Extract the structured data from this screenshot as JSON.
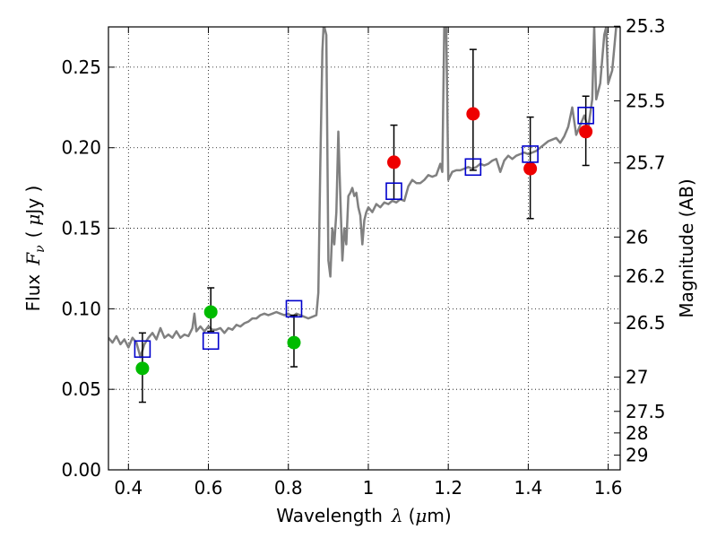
{
  "chart_data": {
    "type": "scatter",
    "title": "",
    "xlabel": "Wavelength",
    "xlabel_symbol": "λ",
    "xlabel_unit_prefix": "(",
    "xlabel_unit_mu": "μ",
    "xlabel_unit_rest": "m)",
    "ylabel": "Flux",
    "ylabel_symbol": "F",
    "ylabel_subscript": "ν",
    "ylabel_unit_prefix": "(",
    "ylabel_unit_mu": "μ",
    "ylabel_unit_rest": "Jy )",
    "y2label": "Magnitude (AB)",
    "xlim": [
      0.35,
      1.63
    ],
    "ylim": [
      0.0,
      0.275
    ],
    "grid": true,
    "xticks": [
      0.4,
      0.6,
      0.8,
      1.0,
      1.2,
      1.4,
      1.6
    ],
    "xtick_labels": [
      "0.4",
      "0.6",
      "0.8",
      "1",
      "1.2",
      "1.4",
      "1.6"
    ],
    "yticks": [
      0.0,
      0.05,
      0.1,
      0.15,
      0.2,
      0.25
    ],
    "ytick_labels": [
      "0.00",
      "0.05",
      "0.10",
      "0.15",
      "0.20",
      "0.25"
    ],
    "y2ticks": [
      {
        "label": "25.3",
        "mag": 25.3
      },
      {
        "label": "25.5",
        "mag": 25.5
      },
      {
        "label": "25.7",
        "mag": 25.7
      },
      {
        "label": "26",
        "mag": 26.0
      },
      {
        "label": "26.2",
        "mag": 26.2
      },
      {
        "label": "26.5",
        "mag": 26.5
      },
      {
        "label": "27",
        "mag": 27.0
      },
      {
        "label": "27.5",
        "mag": 27.5
      },
      {
        "label": "28",
        "mag": 28.0
      },
      {
        "label": "29",
        "mag": 29.0
      }
    ],
    "colors": {
      "green": "#00bb00",
      "red": "#ee0000",
      "model_points": "#0000cc",
      "template": "#808080",
      "errorbar": "#000000",
      "grid": "#000000"
    },
    "series": [
      {
        "name": "observed-green",
        "marker": "circle",
        "color": "#00bb00",
        "points": [
          {
            "x": 0.435,
            "y": 0.063,
            "lo": 0.042,
            "hi": 0.085
          },
          {
            "x": 0.606,
            "y": 0.098,
            "lo": 0.086,
            "hi": 0.113
          },
          {
            "x": 0.814,
            "y": 0.079,
            "lo": 0.064,
            "hi": 0.096
          }
        ]
      },
      {
        "name": "observed-red",
        "marker": "circle",
        "color": "#ee0000",
        "points": [
          {
            "x": 1.064,
            "y": 0.191,
            "lo": 0.168,
            "hi": 0.214
          },
          {
            "x": 1.262,
            "y": 0.221,
            "lo": 0.186,
            "hi": 0.261
          },
          {
            "x": 1.405,
            "y": 0.187,
            "lo": 0.156,
            "hi": 0.219
          },
          {
            "x": 1.544,
            "y": 0.21,
            "lo": 0.189,
            "hi": 0.232
          }
        ]
      },
      {
        "name": "model-photometry",
        "marker": "open-square",
        "color": "#0000cc",
        "points": [
          {
            "x": 0.435,
            "y": 0.075
          },
          {
            "x": 0.606,
            "y": 0.08
          },
          {
            "x": 0.814,
            "y": 0.1
          },
          {
            "x": 1.064,
            "y": 0.173
          },
          {
            "x": 1.262,
            "y": 0.188
          },
          {
            "x": 1.405,
            "y": 0.196
          },
          {
            "x": 1.544,
            "y": 0.22
          }
        ]
      },
      {
        "name": "template-spectrum",
        "marker": "line",
        "color": "#808080",
        "points": [
          [
            0.35,
            0.082
          ],
          [
            0.36,
            0.079
          ],
          [
            0.37,
            0.083
          ],
          [
            0.38,
            0.078
          ],
          [
            0.39,
            0.081
          ],
          [
            0.4,
            0.076
          ],
          [
            0.41,
            0.082
          ],
          [
            0.42,
            0.079
          ],
          [
            0.43,
            0.07
          ],
          [
            0.44,
            0.078
          ],
          [
            0.45,
            0.082
          ],
          [
            0.46,
            0.085
          ],
          [
            0.47,
            0.081
          ],
          [
            0.48,
            0.088
          ],
          [
            0.49,
            0.082
          ],
          [
            0.5,
            0.084
          ],
          [
            0.51,
            0.082
          ],
          [
            0.52,
            0.086
          ],
          [
            0.53,
            0.082
          ],
          [
            0.54,
            0.084
          ],
          [
            0.55,
            0.083
          ],
          [
            0.56,
            0.088
          ],
          [
            0.565,
            0.097
          ],
          [
            0.57,
            0.086
          ],
          [
            0.58,
            0.089
          ],
          [
            0.59,
            0.086
          ],
          [
            0.6,
            0.089
          ],
          [
            0.61,
            0.087
          ],
          [
            0.62,
            0.087
          ],
          [
            0.63,
            0.088
          ],
          [
            0.64,
            0.085
          ],
          [
            0.65,
            0.088
          ],
          [
            0.66,
            0.087
          ],
          [
            0.67,
            0.09
          ],
          [
            0.68,
            0.089
          ],
          [
            0.69,
            0.091
          ],
          [
            0.7,
            0.092
          ],
          [
            0.71,
            0.094
          ],
          [
            0.72,
            0.094
          ],
          [
            0.73,
            0.096
          ],
          [
            0.74,
            0.097
          ],
          [
            0.75,
            0.096
          ],
          [
            0.76,
            0.097
          ],
          [
            0.77,
            0.098
          ],
          [
            0.78,
            0.097
          ],
          [
            0.79,
            0.096
          ],
          [
            0.8,
            0.097
          ],
          [
            0.81,
            0.095
          ],
          [
            0.82,
            0.097
          ],
          [
            0.83,
            0.096
          ],
          [
            0.84,
            0.095
          ],
          [
            0.85,
            0.094
          ],
          [
            0.86,
            0.095
          ],
          [
            0.87,
            0.096
          ],
          [
            0.875,
            0.11
          ],
          [
            0.88,
            0.19
          ],
          [
            0.885,
            0.26
          ],
          [
            0.888,
            0.275
          ],
          [
            0.89,
            0.275
          ],
          [
            0.895,
            0.27
          ],
          [
            0.9,
            0.13
          ],
          [
            0.905,
            0.12
          ],
          [
            0.91,
            0.15
          ],
          [
            0.915,
            0.14
          ],
          [
            0.92,
            0.16
          ],
          [
            0.925,
            0.21
          ],
          [
            0.93,
            0.17
          ],
          [
            0.935,
            0.13
          ],
          [
            0.94,
            0.15
          ],
          [
            0.945,
            0.14
          ],
          [
            0.95,
            0.17
          ],
          [
            0.955,
            0.172
          ],
          [
            0.96,
            0.175
          ],
          [
            0.965,
            0.17
          ],
          [
            0.97,
            0.172
          ],
          [
            0.975,
            0.163
          ],
          [
            0.98,
            0.158
          ],
          [
            0.985,
            0.14
          ],
          [
            0.99,
            0.155
          ],
          [
            0.995,
            0.16
          ],
          [
            1.0,
            0.163
          ],
          [
            1.01,
            0.16
          ],
          [
            1.02,
            0.165
          ],
          [
            1.03,
            0.163
          ],
          [
            1.04,
            0.166
          ],
          [
            1.05,
            0.165
          ],
          [
            1.06,
            0.167
          ],
          [
            1.07,
            0.166
          ],
          [
            1.08,
            0.168
          ],
          [
            1.09,
            0.167
          ],
          [
            1.1,
            0.176
          ],
          [
            1.11,
            0.18
          ],
          [
            1.12,
            0.178
          ],
          [
            1.13,
            0.178
          ],
          [
            1.14,
            0.18
          ],
          [
            1.15,
            0.183
          ],
          [
            1.16,
            0.182
          ],
          [
            1.17,
            0.183
          ],
          [
            1.18,
            0.19
          ],
          [
            1.185,
            0.185
          ],
          [
            1.19,
            0.275
          ],
          [
            1.195,
            0.275
          ],
          [
            1.2,
            0.18
          ],
          [
            1.21,
            0.185
          ],
          [
            1.22,
            0.186
          ],
          [
            1.23,
            0.186
          ],
          [
            1.24,
            0.187
          ],
          [
            1.25,
            0.188
          ],
          [
            1.26,
            0.187
          ],
          [
            1.27,
            0.188
          ],
          [
            1.28,
            0.19
          ],
          [
            1.29,
            0.189
          ],
          [
            1.3,
            0.19
          ],
          [
            1.31,
            0.192
          ],
          [
            1.32,
            0.193
          ],
          [
            1.33,
            0.185
          ],
          [
            1.34,
            0.192
          ],
          [
            1.35,
            0.195
          ],
          [
            1.36,
            0.193
          ],
          [
            1.37,
            0.195
          ],
          [
            1.38,
            0.196
          ],
          [
            1.39,
            0.197
          ],
          [
            1.4,
            0.196
          ],
          [
            1.41,
            0.197
          ],
          [
            1.42,
            0.198
          ],
          [
            1.43,
            0.2
          ],
          [
            1.44,
            0.202
          ],
          [
            1.45,
            0.204
          ],
          [
            1.46,
            0.205
          ],
          [
            1.47,
            0.206
          ],
          [
            1.48,
            0.203
          ],
          [
            1.49,
            0.207
          ],
          [
            1.5,
            0.213
          ],
          [
            1.51,
            0.225
          ],
          [
            1.52,
            0.208
          ],
          [
            1.53,
            0.214
          ],
          [
            1.54,
            0.22
          ],
          [
            1.55,
            0.212
          ],
          [
            1.56,
            0.23
          ],
          [
            1.565,
            0.275
          ],
          [
            1.57,
            0.23
          ],
          [
            1.58,
            0.24
          ],
          [
            1.59,
            0.27
          ],
          [
            1.595,
            0.275
          ],
          [
            1.6,
            0.24
          ],
          [
            1.61,
            0.248
          ],
          [
            1.62,
            0.275
          ],
          [
            1.63,
            0.275
          ]
        ]
      }
    ]
  }
}
